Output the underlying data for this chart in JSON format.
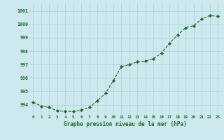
{
  "x": [
    0,
    1,
    2,
    3,
    4,
    5,
    6,
    7,
    8,
    9,
    10,
    11,
    12,
    13,
    14,
    15,
    16,
    17,
    18,
    19,
    20,
    21,
    22,
    23
  ],
  "y": [
    994.2,
    993.9,
    993.8,
    993.55,
    993.5,
    993.5,
    993.6,
    993.8,
    994.3,
    994.85,
    995.8,
    996.85,
    997.0,
    997.2,
    997.25,
    997.45,
    997.85,
    998.6,
    999.2,
    999.75,
    999.9,
    1000.4,
    1000.65,
    1000.6
  ],
  "line_color": "#1a6e1a",
  "marker_color": "#1a6e1a",
  "bg_color": "#cde8ee",
  "grid_color": "#b0d4da",
  "xlabel": "Graphe pression niveau de la mer (hPa)",
  "xlabel_color": "#1a6e1a",
  "tick_color": "#1a6e1a",
  "ylim": [
    993.25,
    1001.5
  ],
  "yticks": [
    994,
    995,
    996,
    997,
    998,
    999,
    1000,
    1001
  ],
  "xticks": [
    0,
    1,
    2,
    3,
    4,
    5,
    6,
    7,
    8,
    9,
    10,
    11,
    12,
    13,
    14,
    15,
    16,
    17,
    18,
    19,
    20,
    21,
    22,
    23
  ],
  "xtick_labels": [
    "0",
    "1",
    "2",
    "3",
    "4",
    "5",
    "6",
    "7",
    "8",
    "9",
    "10",
    "11",
    "12",
    "13",
    "14",
    "15",
    "16",
    "17",
    "18",
    "19",
    "20",
    "21",
    "22",
    "23"
  ]
}
